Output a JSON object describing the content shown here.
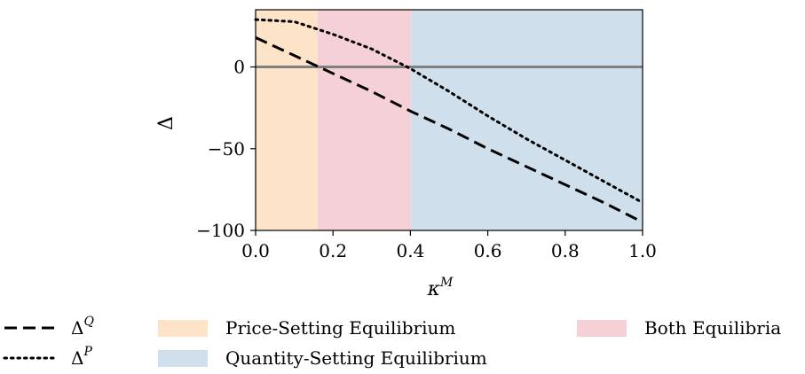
{
  "chart_data": {
    "type": "line",
    "title": "",
    "xlabel": "κ",
    "xlabel_sup": "M",
    "ylabel": "Δ",
    "xlim": [
      0.0,
      1.0
    ],
    "ylim": [
      -100,
      35
    ],
    "x_ticks": [
      {
        "value": 0.0,
        "label": "0.0"
      },
      {
        "value": 0.2,
        "label": "0.2"
      },
      {
        "value": 0.4,
        "label": "0.4"
      },
      {
        "value": 0.6,
        "label": "0.6"
      },
      {
        "value": 0.8,
        "label": "0.8"
      },
      {
        "value": 1.0,
        "label": "1.0"
      }
    ],
    "y_ticks": [
      {
        "value": 0,
        "label": "0"
      },
      {
        "value": -50,
        "label": "−50"
      },
      {
        "value": -100,
        "label": "−100"
      }
    ],
    "grid": false,
    "reference_line": {
      "y": 0,
      "color": "#808080"
    },
    "regions": [
      {
        "name": "Price-Setting Equilibrium",
        "x0": 0.0,
        "x1": 0.16,
        "color": "#fde3c8"
      },
      {
        "name": "Both Equilibria",
        "x0": 0.16,
        "x1": 0.402,
        "color": "#f5d0d6"
      },
      {
        "name": "Quantity-Setting Equilibrium",
        "x0": 0.402,
        "x1": 1.0,
        "color": "#cfe0ec"
      }
    ],
    "x": [
      0.0,
      0.1,
      0.2,
      0.3,
      0.4,
      0.5,
      0.6,
      0.7,
      0.8,
      0.9,
      1.0
    ],
    "series": [
      {
        "name": "Δ",
        "name_sup": "Q",
        "style": "dashed",
        "values": [
          18,
          7,
          -4,
          -15,
          -27,
          -38,
          -50,
          -61,
          -72,
          -83,
          -95
        ]
      },
      {
        "name": "Δ",
        "name_sup": "P",
        "style": "dotted",
        "values": [
          29,
          27.7,
          20,
          11,
          -1,
          -15,
          -30,
          -44,
          -57,
          -70,
          -83
        ]
      }
    ],
    "legend_position": "bottom"
  }
}
